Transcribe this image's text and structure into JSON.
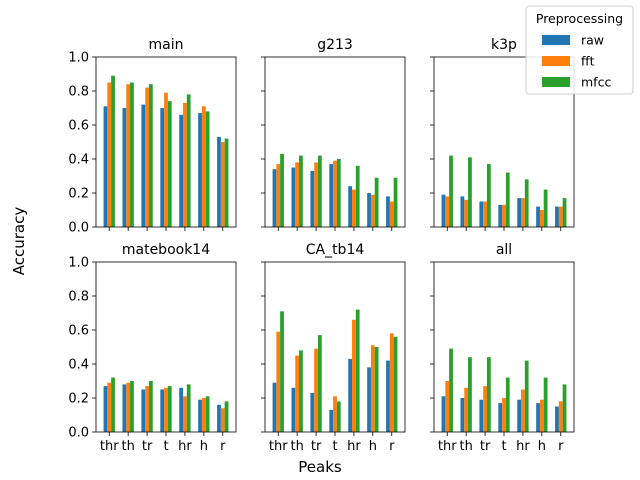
{
  "figure": {
    "supylabel": "Accuracy",
    "supxlabel": "Peaks"
  },
  "legend": {
    "title": "Preprocessing",
    "placement": "top-right",
    "entries": [
      {
        "label": "raw",
        "color": "#1f77b4"
      },
      {
        "label": "fft",
        "color": "#ff7f0e"
      },
      {
        "label": "mfcc",
        "color": "#2ca02c"
      }
    ]
  },
  "chart_data": [
    {
      "type": "bar",
      "title": "main",
      "categories": [
        "thr",
        "th",
        "tr",
        "t",
        "hr",
        "h",
        "r"
      ],
      "ylim": [
        0,
        1
      ],
      "yticks": [
        "0.0",
        "0.2",
        "0.4",
        "0.6",
        "0.8",
        "1.0"
      ],
      "series": [
        {
          "name": "raw",
          "values": [
            0.71,
            0.7,
            0.72,
            0.7,
            0.66,
            0.67,
            0.53
          ]
        },
        {
          "name": "fft",
          "values": [
            0.85,
            0.84,
            0.82,
            0.79,
            0.73,
            0.71,
            0.5
          ]
        },
        {
          "name": "mfcc",
          "values": [
            0.89,
            0.85,
            0.84,
            0.74,
            0.78,
            0.68,
            0.52
          ]
        }
      ]
    },
    {
      "type": "bar",
      "title": "g213",
      "categories": [
        "thr",
        "th",
        "tr",
        "t",
        "hr",
        "h",
        "r"
      ],
      "ylim": [
        0,
        1
      ],
      "yticks": [
        "0.0",
        "0.2",
        "0.4",
        "0.6",
        "0.8",
        "1.0"
      ],
      "series": [
        {
          "name": "raw",
          "values": [
            0.34,
            0.35,
            0.33,
            0.37,
            0.24,
            0.2,
            0.18
          ]
        },
        {
          "name": "fft",
          "values": [
            0.37,
            0.38,
            0.38,
            0.39,
            0.22,
            0.19,
            0.15
          ]
        },
        {
          "name": "mfcc",
          "values": [
            0.43,
            0.42,
            0.42,
            0.4,
            0.36,
            0.29,
            0.29
          ]
        }
      ]
    },
    {
      "type": "bar",
      "title": "k3p",
      "categories": [
        "thr",
        "th",
        "tr",
        "t",
        "hr",
        "h",
        "r"
      ],
      "ylim": [
        0,
        1
      ],
      "yticks": [
        "0.0",
        "0.2",
        "0.4",
        "0.6",
        "0.8",
        "1.0"
      ],
      "series": [
        {
          "name": "raw",
          "values": [
            0.19,
            0.18,
            0.15,
            0.13,
            0.17,
            0.12,
            0.12
          ]
        },
        {
          "name": "fft",
          "values": [
            0.18,
            0.16,
            0.15,
            0.13,
            0.17,
            0.1,
            0.12
          ]
        },
        {
          "name": "mfcc",
          "values": [
            0.42,
            0.41,
            0.37,
            0.32,
            0.28,
            0.22,
            0.17
          ]
        }
      ]
    },
    {
      "type": "bar",
      "title": "matebook14",
      "categories": [
        "thr",
        "th",
        "tr",
        "t",
        "hr",
        "h",
        "r"
      ],
      "ylim": [
        0,
        1
      ],
      "yticks": [
        "0.0",
        "0.2",
        "0.4",
        "0.6",
        "0.8",
        "1.0"
      ],
      "series": [
        {
          "name": "raw",
          "values": [
            0.27,
            0.28,
            0.25,
            0.25,
            0.26,
            0.19,
            0.16
          ]
        },
        {
          "name": "fft",
          "values": [
            0.29,
            0.29,
            0.27,
            0.26,
            0.21,
            0.2,
            0.14
          ]
        },
        {
          "name": "mfcc",
          "values": [
            0.32,
            0.3,
            0.3,
            0.27,
            0.28,
            0.21,
            0.18
          ]
        }
      ]
    },
    {
      "type": "bar",
      "title": "CA_tb14",
      "categories": [
        "thr",
        "th",
        "tr",
        "t",
        "hr",
        "h",
        "r"
      ],
      "ylim": [
        0,
        1
      ],
      "yticks": [
        "0.0",
        "0.2",
        "0.4",
        "0.6",
        "0.8",
        "1.0"
      ],
      "series": [
        {
          "name": "raw",
          "values": [
            0.29,
            0.26,
            0.23,
            0.13,
            0.43,
            0.38,
            0.42
          ]
        },
        {
          "name": "fft",
          "values": [
            0.59,
            0.45,
            0.49,
            0.21,
            0.66,
            0.51,
            0.58
          ]
        },
        {
          "name": "mfcc",
          "values": [
            0.71,
            0.48,
            0.57,
            0.18,
            0.72,
            0.5,
            0.56
          ]
        }
      ]
    },
    {
      "type": "bar",
      "title": "all",
      "categories": [
        "thr",
        "th",
        "tr",
        "t",
        "hr",
        "h",
        "r"
      ],
      "ylim": [
        0,
        1
      ],
      "yticks": [
        "0.0",
        "0.2",
        "0.4",
        "0.6",
        "0.8",
        "1.0"
      ],
      "series": [
        {
          "name": "raw",
          "values": [
            0.21,
            0.2,
            0.19,
            0.17,
            0.19,
            0.17,
            0.15
          ]
        },
        {
          "name": "fft",
          "values": [
            0.3,
            0.26,
            0.27,
            0.2,
            0.25,
            0.19,
            0.18
          ]
        },
        {
          "name": "mfcc",
          "values": [
            0.49,
            0.44,
            0.44,
            0.32,
            0.42,
            0.32,
            0.28
          ]
        }
      ]
    }
  ]
}
